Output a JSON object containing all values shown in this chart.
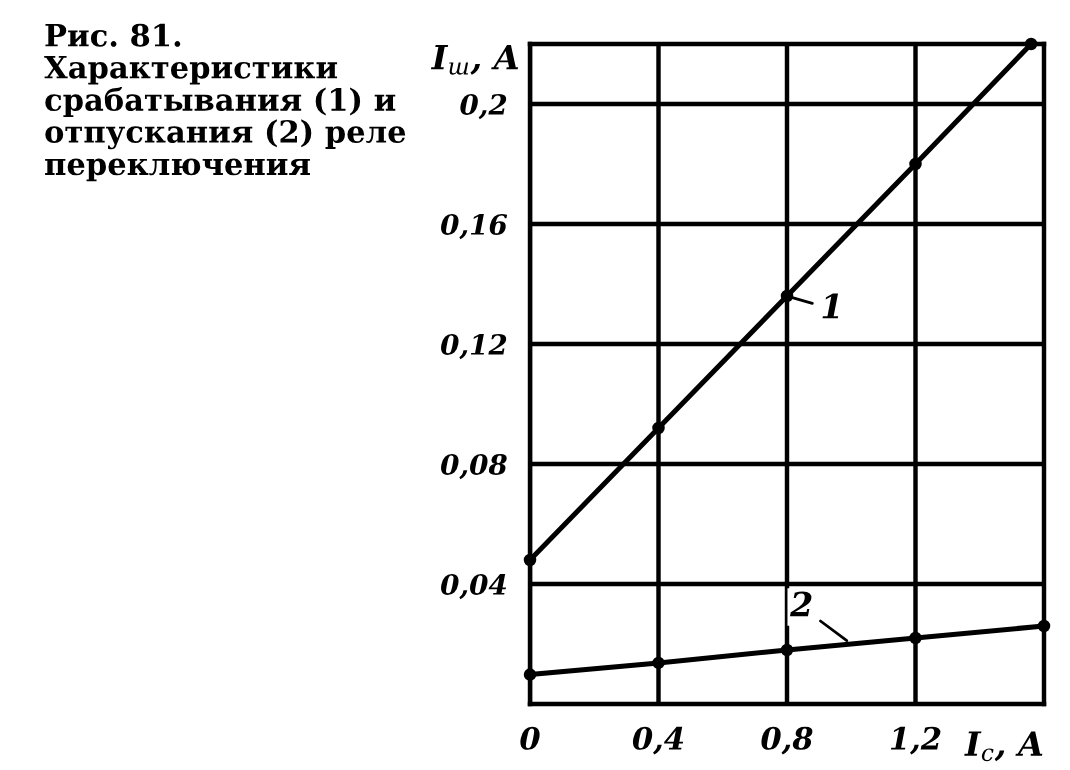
{
  "chart_data": {
    "type": "line",
    "title": "Рис. 81. Характеристики срабатывания (1) и отпускания (2) реле переключения",
    "xlabel": "I$_{c}$, A",
    "ylabel": "I$_{ш}$, A",
    "series": [
      {
        "x": [
          0,
          0.4,
          0.8,
          1.2,
          1.56
        ],
        "values": [
          0.048,
          0.092,
          0.136,
          0.18,
          0.22
        ],
        "color": "#000000"
      },
      {
        "x": [
          0,
          0.4,
          0.8,
          1.2,
          1.6
        ],
        "values": [
          0.0098,
          0.0137,
          0.018,
          0.022,
          0.026
        ],
        "color": "#000000"
      }
    ],
    "annotations": [
      {
        "text": "1",
        "x": 0.8,
        "y": 0.136
      },
      {
        "text": "2",
        "x": 1.0,
        "y": 0.02
      }
    ],
    "xlim": [
      0,
      1.6
    ],
    "ylim": [
      0,
      0.22
    ],
    "xticks": [
      0,
      {
        "value": 0.4,
        "label": "0,4"
      },
      {
        "value": 0.8,
        "label": "0,8"
      },
      {
        "value": 1.2,
        "label": "1,2"
      }
    ],
    "yticks": [
      {
        "value": 0.04,
        "label": "0,04"
      },
      {
        "value": 0.08,
        "label": "0,08"
      },
      {
        "value": 0.12,
        "label": "0,12"
      },
      {
        "value": 0.16,
        "label": "0,16"
      },
      {
        "value": 0.2,
        "label": "0,2"
      }
    ],
    "grid": true,
    "marker": "circle",
    "line_style": "solid"
  }
}
